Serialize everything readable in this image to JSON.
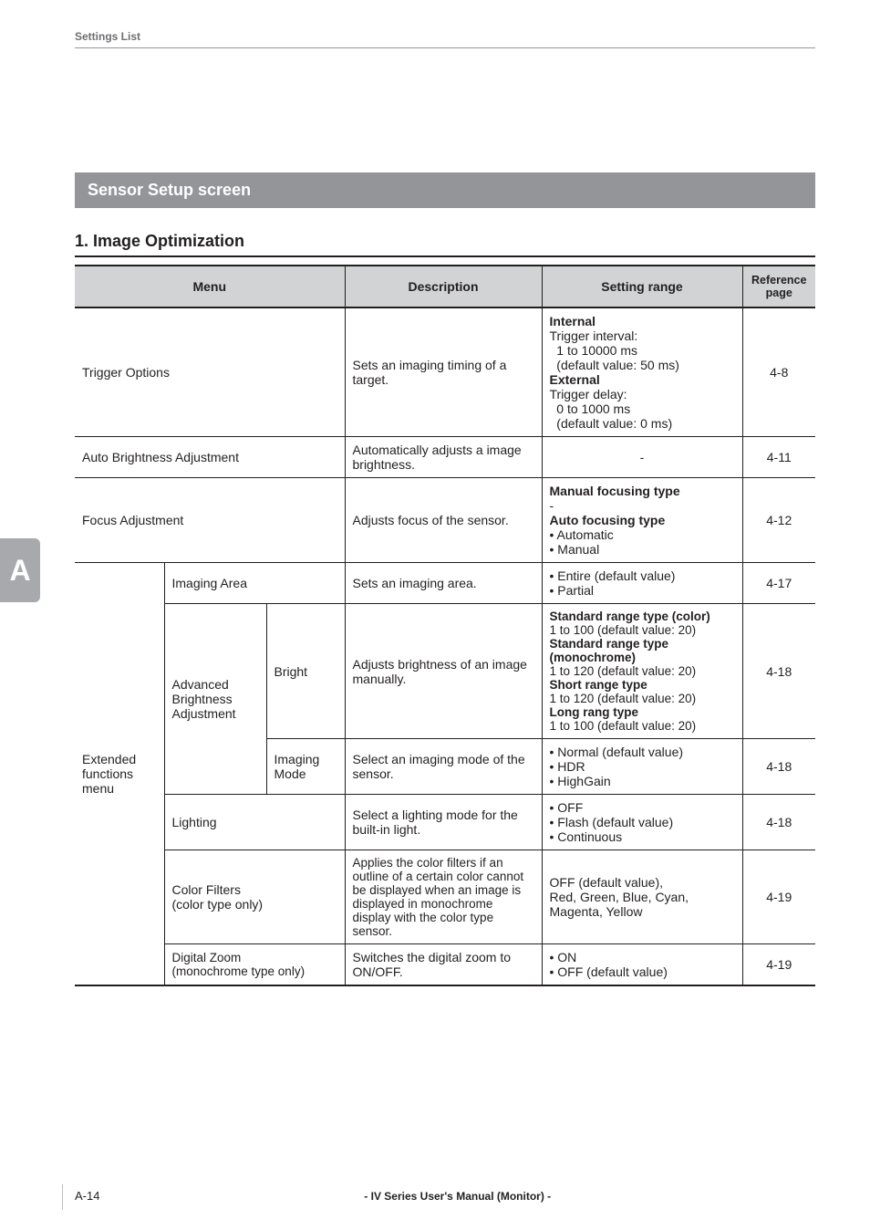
{
  "header": {
    "label": "Settings List"
  },
  "sensor_bar": {
    "title": "Sensor Setup screen"
  },
  "section": {
    "title": "1. Image Optimization"
  },
  "tab": {
    "letter": "A"
  },
  "table": {
    "headers": {
      "menu": "Menu",
      "description": "Description",
      "setting_range": "Setting range",
      "reference_page": "Reference page"
    },
    "col_widths": {
      "menu": 296,
      "description": 216,
      "setting": 220,
      "ref": 80
    },
    "rows": {
      "trigger": {
        "menu": "Trigger Options",
        "description": "Sets an imaging timing of a target.",
        "setting_html": "<b>Internal</b><br>Trigger interval:<br>&nbsp;&nbsp;1 to 10000 ms<br>&nbsp;&nbsp;(default value: 50 ms)<br><b>External</b><br>Trigger delay:<br>&nbsp;&nbsp;0 to 1000 ms<br>&nbsp;&nbsp;(default value: 0 ms)",
        "ref": "4-8"
      },
      "auto_brightness": {
        "menu": "Auto Brightness Adjustment",
        "description": "Automatically adjusts a image brightness.",
        "setting": "-",
        "ref": "4-11"
      },
      "focus": {
        "menu": "Focus Adjustment",
        "description": "Adjusts focus of the sensor.",
        "setting_html": "<b>Manual focusing type</b><br>-<br><b>Auto focusing type</b><br>• Automatic<br>• Manual",
        "ref": "4-12"
      },
      "ext_label": "Extended functions menu",
      "imaging_area": {
        "menu": "Imaging Area",
        "description": "Sets an imaging area.",
        "setting_html": "• Entire (default value)<br>• Partial",
        "ref": "4-17"
      },
      "adv_label": "Advanced Brightness Adjustment",
      "bright": {
        "label": "Bright",
        "description": "Adjusts brightness of an image manually.",
        "setting_html": "<b>Standard range type (color)</b><br>1 to 100 (default value: 20)<br><b>Standard range type (monochrome)</b><br>1 to 120 (default value: 20)<br><b>Short range type</b><br>1 to 120 (default value: 20)<br><b>Long rang type</b><br>1 to 100 (default value: 20)",
        "ref": "4-18"
      },
      "imaging_mode": {
        "label": "Imaging Mode",
        "description": "Select an imaging mode of the sensor.",
        "setting_html": "• Normal (default value)<br>• HDR<br>• HighGain",
        "ref": "4-18"
      },
      "lighting": {
        "menu": "Lighting",
        "description": "Select a lighting mode for the built-in light.",
        "setting_html": "• OFF<br>• Flash (default value)<br>• Continuous",
        "ref": "4-18"
      },
      "color_filters": {
        "menu_html": "Color Filters<br>(color type only)",
        "description": "Applies the color filters if an outline of a certain color cannot be displayed when an image is displayed in monochrome display with the color type sensor.",
        "setting_html": "OFF (default value),<br>Red, Green, Blue, Cyan, Magenta, Yellow",
        "ref": "4-19"
      },
      "digital_zoom": {
        "menu_html": "Digital Zoom<br>(monochrome type only)",
        "description": "Switches the digital zoom to ON/OFF.",
        "setting_html": "• ON<br>• OFF (default value)",
        "ref": "4-19"
      }
    }
  },
  "footer": {
    "page": "A-14",
    "manual": "- IV Series User's Manual (Monitor) -"
  }
}
